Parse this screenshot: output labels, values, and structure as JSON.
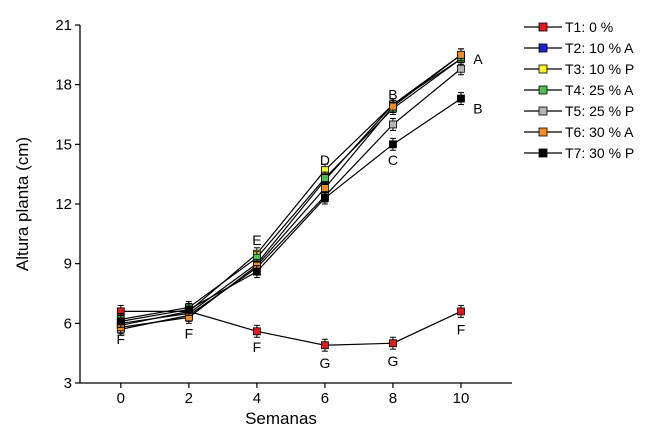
{
  "chart_data": {
    "type": "line",
    "xlabel": "Semanas",
    "ylabel": "Altura planta (cm)",
    "x": [
      0,
      2,
      4,
      6,
      8,
      10
    ],
    "xlim": [
      -1.2,
      11.5
    ],
    "ylim": [
      3,
      21
    ],
    "xticks": [
      0,
      2,
      4,
      6,
      8,
      10
    ],
    "yticks": [
      3,
      6,
      9,
      12,
      15,
      18,
      21
    ],
    "grid": false,
    "legend_position": "top-right",
    "series": [
      {
        "name": "T1: 0 %",
        "color": "#e31a1c",
        "values": [
          6.6,
          6.6,
          5.6,
          4.9,
          5.0,
          6.6
        ],
        "errors": [
          0.3,
          0.3,
          0.3,
          0.3,
          0.3,
          0.3
        ]
      },
      {
        "name": "T2: 10 % A",
        "color": "#1f1fd6",
        "values": [
          6.0,
          6.5,
          9.0,
          13.2,
          17.0,
          19.3
        ],
        "errors": [
          0.3,
          0.3,
          0.3,
          0.3,
          0.3,
          0.3
        ]
      },
      {
        "name": "T3: 10 % P",
        "color": "#f5f52a",
        "values": [
          5.9,
          6.6,
          9.5,
          13.7,
          17.0,
          19.5
        ],
        "errors": [
          0.3,
          0.3,
          0.3,
          0.3,
          0.3,
          0.3
        ]
      },
      {
        "name": "T4: 25 % A",
        "color": "#4cc24c",
        "values": [
          6.2,
          6.8,
          9.3,
          13.3,
          16.8,
          19.3
        ],
        "errors": [
          0.3,
          0.3,
          0.3,
          0.3,
          0.3,
          0.3
        ]
      },
      {
        "name": "T5: 25 % P",
        "color": "#b4b4b4",
        "values": [
          5.7,
          6.4,
          8.8,
          12.4,
          16.0,
          18.8
        ],
        "errors": [
          0.3,
          0.3,
          0.3,
          0.3,
          0.3,
          0.3
        ]
      },
      {
        "name": "T6: 30 % A",
        "color": "#f28c28",
        "values": [
          5.8,
          6.3,
          8.9,
          12.8,
          16.9,
          19.5
        ],
        "errors": [
          0.3,
          0.3,
          0.3,
          0.3,
          0.3,
          0.3
        ]
      },
      {
        "name": "T7: 30 % P",
        "color": "#000000",
        "values": [
          6.1,
          6.7,
          8.6,
          12.3,
          15.0,
          17.3
        ],
        "errors": [
          0.3,
          0.3,
          0.3,
          0.3,
          0.3,
          0.3
        ]
      }
    ],
    "annotations": [
      {
        "text": "F",
        "x": 0,
        "y": 5.2
      },
      {
        "text": "F",
        "x": 2,
        "y": 5.5
      },
      {
        "text": "E",
        "x": 4,
        "y": 10.2
      },
      {
        "text": "F",
        "x": 4,
        "y": 4.8
      },
      {
        "text": "D",
        "x": 6,
        "y": 14.2
      },
      {
        "text": "G",
        "x": 6,
        "y": 4.0
      },
      {
        "text": "B",
        "x": 8,
        "y": 17.5
      },
      {
        "text": "C",
        "x": 8,
        "y": 14.2
      },
      {
        "text": "G",
        "x": 8,
        "y": 4.1
      },
      {
        "text": "A",
        "x": 10.5,
        "y": 19.3
      },
      {
        "text": "B",
        "x": 10.5,
        "y": 16.8
      },
      {
        "text": "F",
        "x": 10,
        "y": 5.7
      }
    ]
  }
}
